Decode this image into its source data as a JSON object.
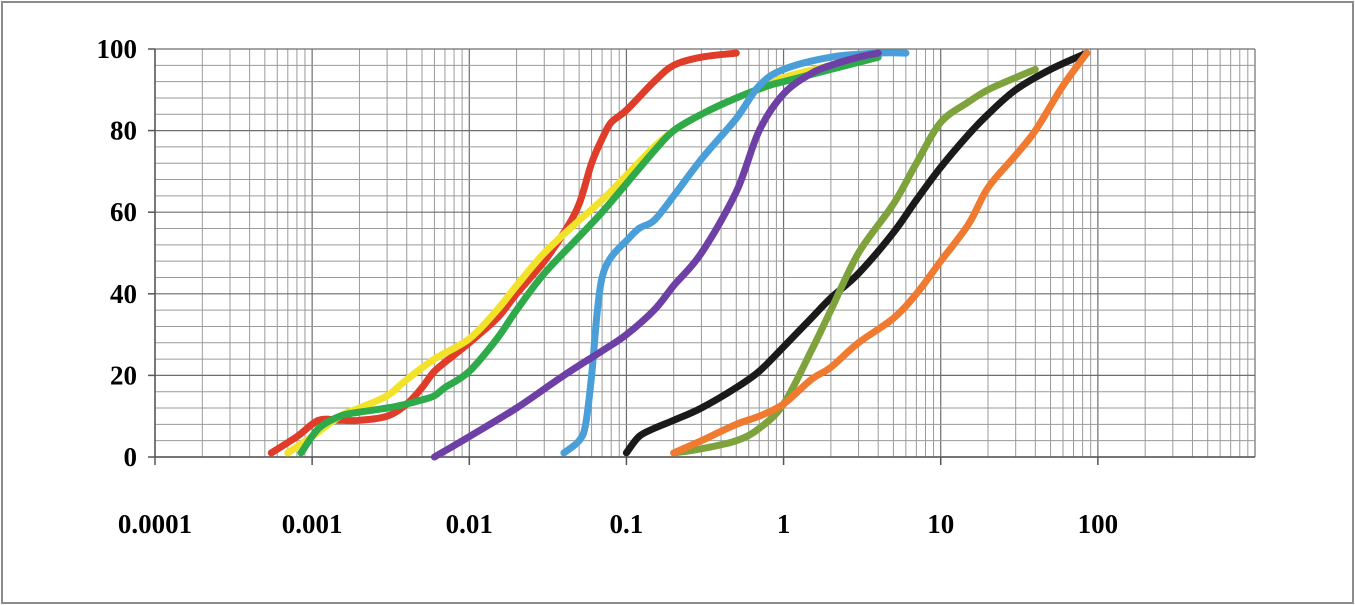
{
  "chart_data": {
    "type": "line",
    "title": "",
    "xlabel": "",
    "ylabel": "",
    "xscale": "log",
    "xlim": [
      0.0001,
      1000
    ],
    "ylim": [
      0,
      100
    ],
    "grid": true,
    "legend": "none",
    "x_tick_labels": [
      "0.0001",
      "0.001",
      "0.01",
      "0.1",
      "1",
      "10",
      "100"
    ],
    "y_tick_labels": [
      "0",
      "20",
      "40",
      "60",
      "80",
      "100"
    ],
    "series": [
      {
        "color": "#e03c2a",
        "points": [
          [
            0.00055,
            1
          ],
          [
            0.0008,
            5
          ],
          [
            0.0011,
            9
          ],
          [
            0.0015,
            9
          ],
          [
            0.002,
            9
          ],
          [
            0.003,
            10
          ],
          [
            0.004,
            13
          ],
          [
            0.005,
            17
          ],
          [
            0.006,
            21
          ],
          [
            0.008,
            25
          ],
          [
            0.01,
            28
          ],
          [
            0.015,
            34
          ],
          [
            0.02,
            40
          ],
          [
            0.03,
            48
          ],
          [
            0.04,
            55
          ],
          [
            0.05,
            62
          ],
          [
            0.06,
            72
          ],
          [
            0.07,
            78
          ],
          [
            0.08,
            82
          ],
          [
            0.1,
            85
          ],
          [
            0.15,
            92
          ],
          [
            0.2,
            96
          ],
          [
            0.3,
            98
          ],
          [
            0.5,
            99
          ]
        ]
      },
      {
        "color": "#f2e32a",
        "points": [
          [
            0.0007,
            1
          ],
          [
            0.001,
            5
          ],
          [
            0.0015,
            10
          ],
          [
            0.002,
            12
          ],
          [
            0.003,
            15
          ],
          [
            0.004,
            19
          ],
          [
            0.006,
            24
          ],
          [
            0.01,
            29
          ],
          [
            0.015,
            36
          ],
          [
            0.02,
            42
          ],
          [
            0.03,
            50
          ],
          [
            0.05,
            58
          ],
          [
            0.07,
            63
          ],
          [
            0.1,
            69
          ],
          [
            0.15,
            76
          ],
          [
            0.2,
            80
          ],
          [
            0.3,
            84
          ],
          [
            0.5,
            88
          ],
          [
            0.8,
            91
          ],
          [
            1,
            93
          ],
          [
            2,
            96
          ],
          [
            4,
            99
          ]
        ]
      },
      {
        "color": "#2eaa4a",
        "points": [
          [
            0.00085,
            1
          ],
          [
            0.0011,
            7
          ],
          [
            0.0015,
            10
          ],
          [
            0.002,
            11
          ],
          [
            0.003,
            12
          ],
          [
            0.004,
            13
          ],
          [
            0.005,
            14
          ],
          [
            0.006,
            15
          ],
          [
            0.007,
            17
          ],
          [
            0.01,
            21
          ],
          [
            0.015,
            29
          ],
          [
            0.02,
            36
          ],
          [
            0.03,
            45
          ],
          [
            0.05,
            54
          ],
          [
            0.07,
            60
          ],
          [
            0.1,
            67
          ],
          [
            0.15,
            75
          ],
          [
            0.2,
            80
          ],
          [
            0.3,
            84
          ],
          [
            0.5,
            88
          ],
          [
            0.8,
            91
          ],
          [
            1,
            92
          ],
          [
            2,
            95
          ],
          [
            4,
            98
          ]
        ]
      },
      {
        "color": "#4a9fd8",
        "points": [
          [
            0.04,
            1
          ],
          [
            0.05,
            4
          ],
          [
            0.055,
            8
          ],
          [
            0.06,
            20
          ],
          [
            0.065,
            35
          ],
          [
            0.07,
            44
          ],
          [
            0.08,
            49
          ],
          [
            0.1,
            53
          ],
          [
            0.12,
            56
          ],
          [
            0.15,
            58
          ],
          [
            0.2,
            64
          ],
          [
            0.3,
            73
          ],
          [
            0.5,
            83
          ],
          [
            0.7,
            91
          ],
          [
            1,
            95
          ],
          [
            2,
            98
          ],
          [
            4,
            99
          ],
          [
            6,
            99
          ]
        ]
      },
      {
        "color": "#6e40a6",
        "points": [
          [
            0.006,
            0
          ],
          [
            0.01,
            5
          ],
          [
            0.02,
            12
          ],
          [
            0.04,
            20
          ],
          [
            0.07,
            26
          ],
          [
            0.1,
            30
          ],
          [
            0.15,
            36
          ],
          [
            0.2,
            42
          ],
          [
            0.3,
            50
          ],
          [
            0.5,
            65
          ],
          [
            0.7,
            80
          ],
          [
            1,
            89
          ],
          [
            1.5,
            94
          ],
          [
            2,
            96
          ],
          [
            3,
            98
          ],
          [
            4,
            99
          ]
        ]
      },
      {
        "color": "#1a1a1a",
        "points": [
          [
            0.1,
            1
          ],
          [
            0.12,
            5
          ],
          [
            0.15,
            7
          ],
          [
            0.2,
            9
          ],
          [
            0.3,
            12
          ],
          [
            0.5,
            17
          ],
          [
            0.7,
            21
          ],
          [
            1,
            27
          ],
          [
            1.5,
            34
          ],
          [
            2,
            39
          ],
          [
            3,
            45
          ],
          [
            5,
            55
          ],
          [
            7,
            63
          ],
          [
            10,
            71
          ],
          [
            15,
            79
          ],
          [
            20,
            84
          ],
          [
            30,
            90
          ],
          [
            50,
            95
          ],
          [
            85,
            99
          ]
        ]
      },
      {
        "color": "#7ea33c",
        "points": [
          [
            0.2,
            1
          ],
          [
            0.3,
            2
          ],
          [
            0.5,
            4
          ],
          [
            0.7,
            7
          ],
          [
            1,
            13
          ],
          [
            1.5,
            26
          ],
          [
            2,
            36
          ],
          [
            3,
            50
          ],
          [
            5,
            62
          ],
          [
            7,
            72
          ],
          [
            10,
            82
          ],
          [
            15,
            87
          ],
          [
            20,
            90
          ],
          [
            30,
            93
          ],
          [
            40,
            95
          ]
        ]
      },
      {
        "color": "#f07a30",
        "points": [
          [
            0.2,
            1
          ],
          [
            0.3,
            4
          ],
          [
            0.5,
            8
          ],
          [
            0.7,
            10
          ],
          [
            1,
            13
          ],
          [
            1.5,
            19
          ],
          [
            2,
            22
          ],
          [
            3,
            28
          ],
          [
            5,
            34
          ],
          [
            7,
            40
          ],
          [
            10,
            48
          ],
          [
            15,
            57
          ],
          [
            20,
            66
          ],
          [
            30,
            74
          ],
          [
            40,
            80
          ],
          [
            60,
            91
          ],
          [
            85,
            99
          ]
        ]
      }
    ]
  }
}
